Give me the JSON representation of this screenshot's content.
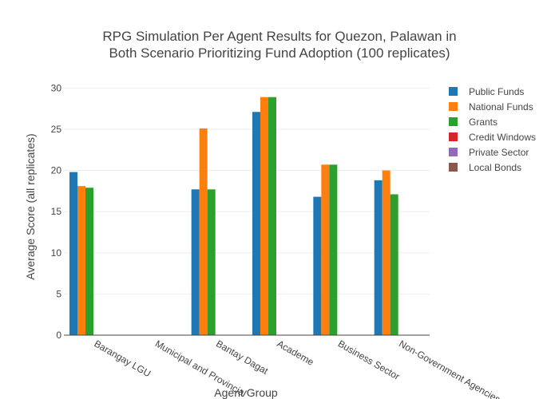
{
  "chart_data": {
    "type": "bar",
    "title_lines": [
      "RPG Simulation Per Agent Results for Quezon, Palawan in",
      "Both Scenario Prioritizing Fund Adoption (100 replicates)"
    ],
    "xlabel": "Agent Group",
    "ylabel": "Average Score (all replicates)",
    "ylim": [
      0,
      31
    ],
    "yticks": [
      0,
      5,
      10,
      15,
      20,
      25,
      30
    ],
    "grid": true,
    "legend_position": "right",
    "categories": [
      "Barangay LGU",
      "Municipal and Provincial",
      "Bantay Dagat",
      "Academe",
      "Business Sector",
      "Non-Government Agencies"
    ],
    "series": [
      {
        "name": "Public Funds",
        "color": "#1f77b4",
        "values": [
          19.8,
          null,
          17.7,
          27.1,
          16.8,
          18.8
        ]
      },
      {
        "name": "National Funds",
        "color": "#ff7f0e",
        "values": [
          18.1,
          null,
          25.1,
          28.9,
          20.7,
          20.0
        ]
      },
      {
        "name": "Grants",
        "color": "#2ca02c",
        "values": [
          17.9,
          null,
          17.7,
          28.9,
          20.7,
          17.1
        ]
      },
      {
        "name": "Credit Windows",
        "color": "#d62728",
        "values": [
          null,
          null,
          null,
          null,
          null,
          null
        ]
      },
      {
        "name": "Private Sector",
        "color": "#9467bd",
        "values": [
          null,
          null,
          null,
          null,
          null,
          null
        ]
      },
      {
        "name": "Local Bonds",
        "color": "#8c564b",
        "values": [
          null,
          null,
          null,
          null,
          null,
          null
        ]
      }
    ]
  }
}
